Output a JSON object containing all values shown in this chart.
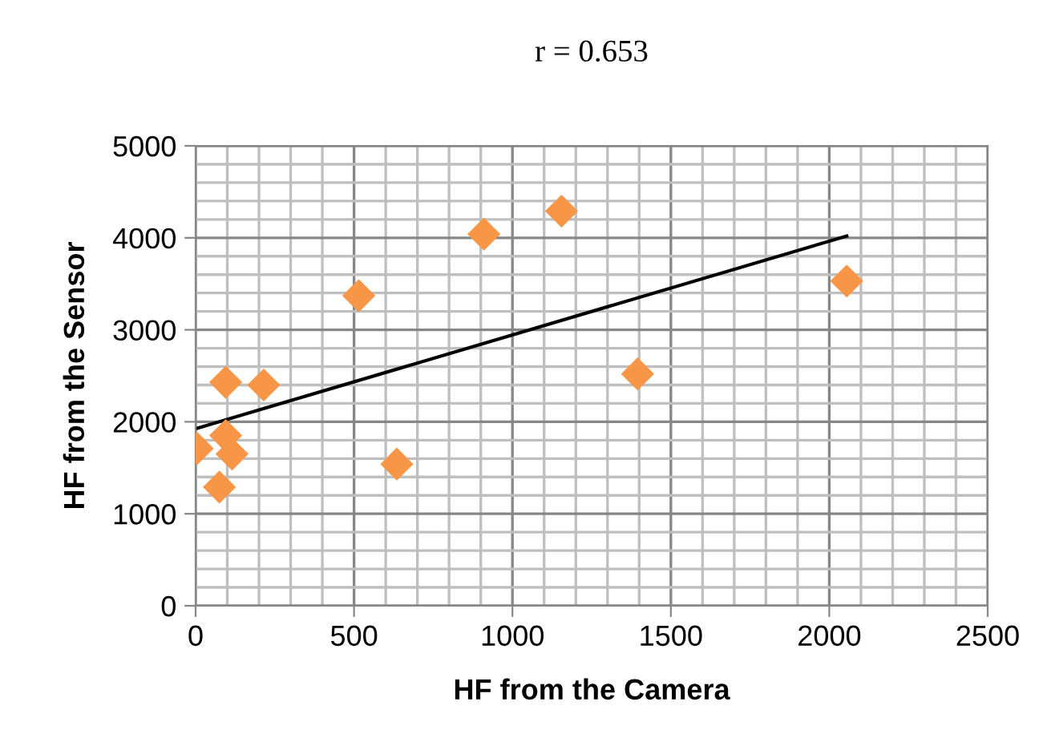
{
  "chart_data": {
    "type": "scatter",
    "title": "r = 0.653",
    "xlabel": "HF from the Camera",
    "ylabel": "HF from the Sensor",
    "xlim": [
      0,
      2500
    ],
    "xticks": [
      0,
      500,
      1000,
      1500,
      2000,
      2500
    ],
    "ylim": [
      0,
      5000
    ],
    "yticks": [
      0,
      1000,
      2000,
      3000,
      4000,
      5000
    ],
    "grid": true,
    "series": [
      {
        "color": "#f79646",
        "marker": "diamond",
        "x": [
          5,
          95,
          215,
          95,
          115,
          75,
          515,
          635,
          910,
          1155,
          1395,
          2055
        ],
        "values": [
          1710,
          2430,
          2400,
          1850,
          1650,
          1290,
          3370,
          1540,
          4040,
          4290,
          2520,
          3530
        ]
      },
      {
        "type": "line",
        "color": "#000000",
        "marker": "none",
        "x": [
          5,
          2055
        ],
        "values": [
          1930,
          4020
        ]
      }
    ]
  }
}
